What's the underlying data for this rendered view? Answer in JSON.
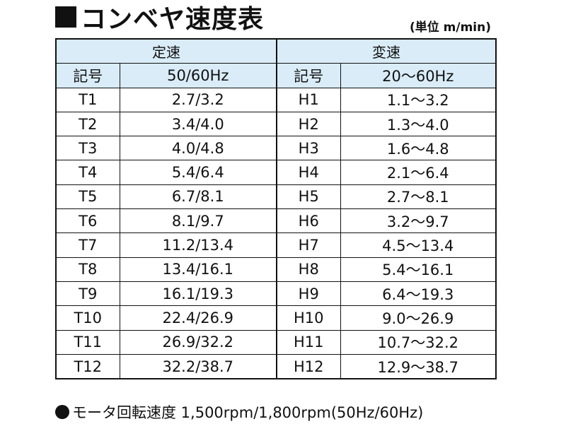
{
  "title": "コンベヤ速度表",
  "unit": "(単位 m/min)",
  "table": {
    "group_fixed": "定速",
    "group_variable": "変速",
    "col_code_fixed": "記号",
    "col_freq_fixed": "50/60Hz",
    "col_code_variable": "記号",
    "col_freq_variable": "20〜60Hz",
    "rows": [
      {
        "code_fixed": "T1",
        "speed_fixed": "2.7/3.2",
        "code_variable": "H1",
        "speed_variable": "1.1〜3.2"
      },
      {
        "code_fixed": "T2",
        "speed_fixed": "3.4/4.0",
        "code_variable": "H2",
        "speed_variable": "1.3〜4.0"
      },
      {
        "code_fixed": "T3",
        "speed_fixed": "4.0/4.8",
        "code_variable": "H3",
        "speed_variable": "1.6〜4.8"
      },
      {
        "code_fixed": "T4",
        "speed_fixed": "5.4/6.4",
        "code_variable": "H4",
        "speed_variable": "2.1〜6.4"
      },
      {
        "code_fixed": "T5",
        "speed_fixed": "6.7/8.1",
        "code_variable": "H5",
        "speed_variable": "2.7〜8.1"
      },
      {
        "code_fixed": "T6",
        "speed_fixed": "8.1/9.7",
        "code_variable": "H6",
        "speed_variable": "3.2〜9.7"
      },
      {
        "code_fixed": "T7",
        "speed_fixed": "11.2/13.4",
        "code_variable": "H7",
        "speed_variable": "4.5〜13.4"
      },
      {
        "code_fixed": "T8",
        "speed_fixed": "13.4/16.1",
        "code_variable": "H8",
        "speed_variable": "5.4〜16.1"
      },
      {
        "code_fixed": "T9",
        "speed_fixed": "16.1/19.3",
        "code_variable": "H9",
        "speed_variable": "6.4〜19.3"
      },
      {
        "code_fixed": "T10",
        "speed_fixed": "22.4/26.9",
        "code_variable": "H10",
        "speed_variable": "9.0〜26.9"
      },
      {
        "code_fixed": "T11",
        "speed_fixed": "26.9/32.2",
        "code_variable": "H11",
        "speed_variable": "10.7〜32.2"
      },
      {
        "code_fixed": "T12",
        "speed_fixed": "32.2/38.7",
        "code_variable": "H12",
        "speed_variable": "12.9〜38.7"
      }
    ]
  },
  "note": "モータ回転速度 1,500rpm/1,800rpm(50Hz/60Hz)",
  "colors": {
    "header_bg": "#d9ecf7",
    "text": "#111111"
  },
  "icons": {
    "title_marker": "black-square-icon",
    "note_bullet": "black-circle-icon"
  }
}
